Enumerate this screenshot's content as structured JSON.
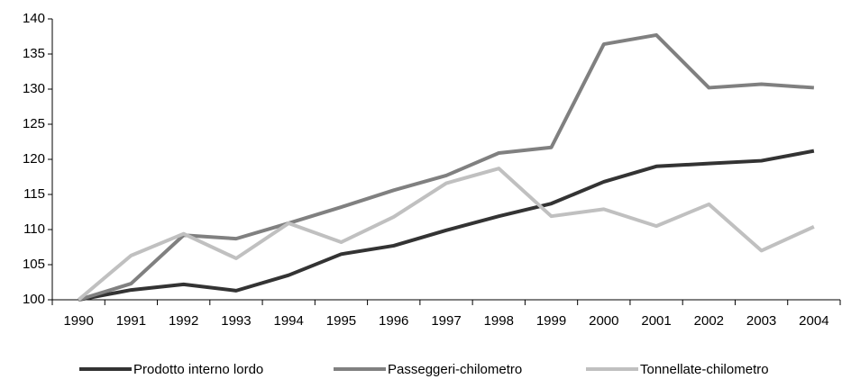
{
  "chart_data": {
    "type": "line",
    "categories": [
      "1990",
      "1991",
      "1992",
      "1993",
      "1994",
      "1995",
      "1996",
      "1997",
      "1998",
      "1999",
      "2000",
      "2001",
      "2002",
      "2003",
      "2004"
    ],
    "series": [
      {
        "name": "Prodotto interno lordo",
        "color": "#333333",
        "values": [
          100,
          101.4,
          102.2,
          101.3,
          103.5,
          106.5,
          107.7,
          109.9,
          111.9,
          113.7,
          116.8,
          119.0,
          119.4,
          119.8,
          121.2
        ]
      },
      {
        "name": "Passeggeri-chilometro",
        "color": "#808080",
        "values": [
          100,
          102.3,
          109.2,
          108.7,
          110.9,
          113.2,
          115.6,
          117.7,
          120.9,
          121.7,
          136.4,
          137.7,
          130.2,
          130.7,
          130.2
        ]
      },
      {
        "name": "Tonnellate-chilometro",
        "color": "#c0c0c0",
        "values": [
          100,
          106.3,
          109.4,
          105.9,
          110.9,
          108.2,
          111.8,
          116.6,
          118.7,
          111.9,
          112.9,
          110.5,
          113.6,
          107.0,
          110.4
        ]
      }
    ],
    "ylim": [
      100,
      140
    ],
    "yticks": [
      100,
      105,
      110,
      115,
      120,
      125,
      130,
      135,
      140
    ],
    "grid": false,
    "legend": "bottom"
  }
}
